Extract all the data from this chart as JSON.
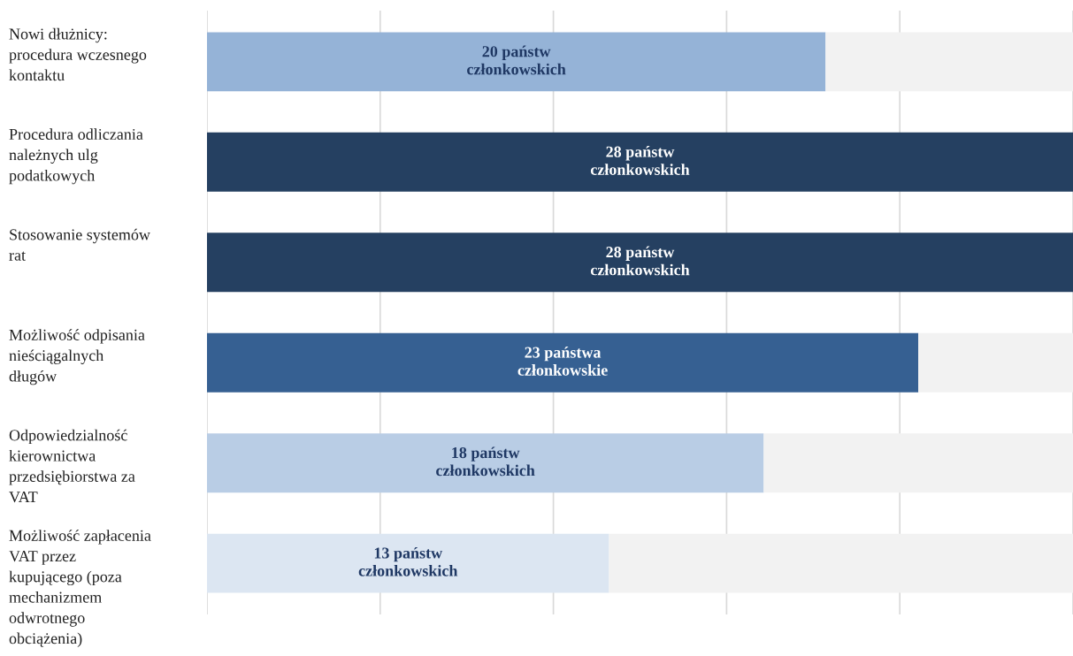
{
  "chart_data": {
    "type": "bar",
    "orientation": "horizontal",
    "stacked": true,
    "categories": [
      "Nowi dłużnicy:\nprocedura wczesnego\nkontaktu",
      "Procedura odliczania\nnależnych ulg\npodatkowych",
      "Stosowanie systemów\nrat",
      "Możliwość odpisania\nnieściągalnych\ndługów",
      "Odpowiedzialność\nkierownictwa\nprzedsiębiorstwa za\nVAT",
      "Możliwość zapłacenia\nVAT przez\nkupującego (poza\nmechanizmem\nodwrotnego\nobciążenia)"
    ],
    "series": [
      {
        "colors": [
          "#95b3d7",
          "#254061",
          "#254061",
          "#366092",
          "#b9cde5",
          "#dce6f2"
        ],
        "values": [
          20,
          28,
          28,
          23,
          18,
          13
        ],
        "value_labels": [
          "20 państw\nczłonkowskich",
          "28 państw\nczłonkowskich",
          "28 państw\nczłonkowskich",
          "23 państwa\nczłonkowskie",
          "18 państw\nczłonkowskich",
          "13 państw\nczłonkowskich"
        ]
      },
      {
        "color": "#f2f2f2",
        "values": [
          8,
          0,
          0,
          5,
          10,
          15
        ]
      }
    ],
    "xlim": [
      0,
      28
    ],
    "xticks": [
      {
        "value": 0,
        "label": null
      },
      {
        "value": 5.6,
        "label": null
      },
      {
        "value": 11.2,
        "label": null
      },
      {
        "value": 16.8,
        "label": null
      },
      {
        "value": 22.4,
        "label": null
      },
      {
        "value": 28,
        "label": null
      }
    ],
    "grid": "x",
    "tick_labels": "y"
  }
}
